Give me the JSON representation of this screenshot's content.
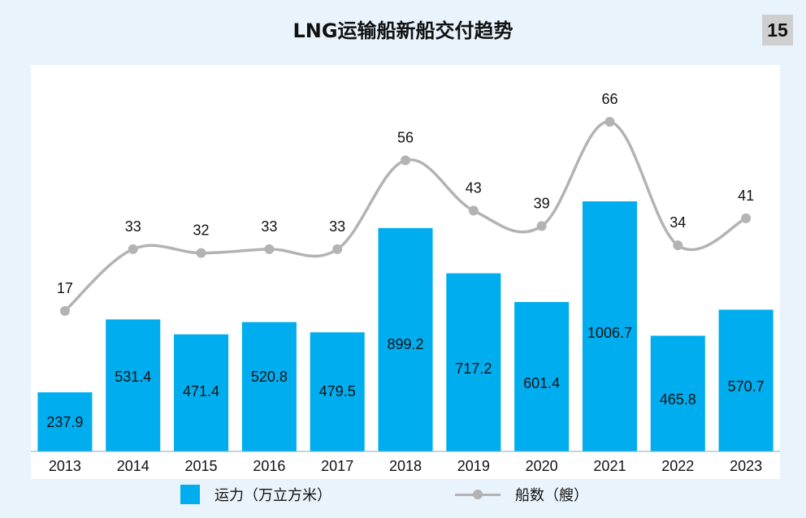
{
  "header": {
    "title": "LNG运输船新船交付趋势",
    "page_number": "15"
  },
  "chart_data": {
    "type": "bar",
    "categories": [
      "2013",
      "2014",
      "2015",
      "2016",
      "2017",
      "2018",
      "2019",
      "2020",
      "2021",
      "2022",
      "2023"
    ],
    "series": [
      {
        "name": "运力（万立方米）",
        "type": "bar",
        "values": [
          237.9,
          531.4,
          471.4,
          520.8,
          479.5,
          899.2,
          717.2,
          601.4,
          1006.7,
          465.8,
          570.7
        ]
      },
      {
        "name": "船数（艘）",
        "type": "line",
        "values": [
          17,
          33,
          32,
          33,
          33,
          56,
          43,
          39,
          66,
          34,
          41
        ]
      }
    ],
    "data_labels": true,
    "legend_position": "bottom",
    "grid": false
  },
  "colors": {
    "bar": "#00aeef",
    "line": "#b3b3b3",
    "background": "#e9f3fb"
  }
}
